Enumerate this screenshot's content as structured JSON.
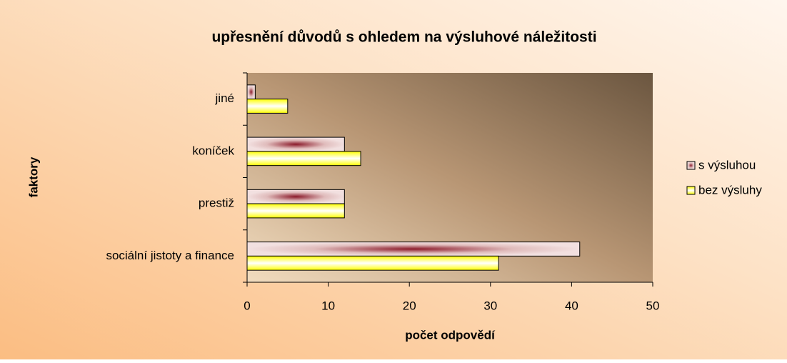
{
  "chart_data": {
    "type": "barh",
    "title": "upřesnění důvodů s ohledem na výsluhové náležitosti",
    "x_label": "počet odpovědí",
    "y_label": "faktory",
    "categories": [
      "jiné",
      "koníček",
      "prestiž",
      "sociální jistoty a finance"
    ],
    "series": [
      {
        "name": "s výsluhou",
        "color": "#8b1a2a",
        "values": [
          1,
          12,
          12,
          41
        ]
      },
      {
        "name": "bez výsluhy",
        "color": "#ffff00",
        "values": [
          5,
          14,
          12,
          31
        ]
      }
    ],
    "xlim": [
      0,
      50
    ],
    "xticks": [
      0,
      10,
      20,
      30,
      40,
      50
    ],
    "grid": false,
    "legend": "right"
  }
}
